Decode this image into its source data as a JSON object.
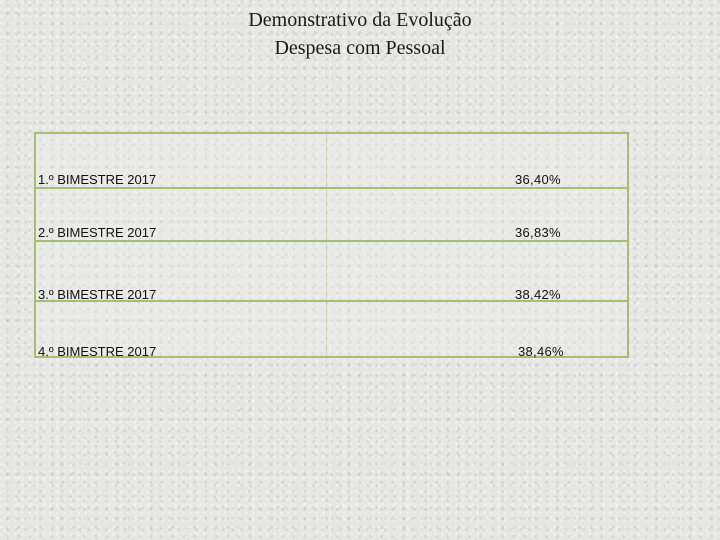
{
  "title": {
    "line1": "Demonstrativo da Evolução",
    "line2": "Despesa com Pessoal"
  },
  "table": {
    "rows": [
      {
        "period": "1.º BIMESTRE 2017",
        "value": "36,40%"
      },
      {
        "period": "2.º BIMESTRE 2017",
        "value": "36,83%"
      },
      {
        "period": "3.º BIMESTRE 2017",
        "value": "38,42%"
      },
      {
        "period": "4.º BIMESTRE 2017",
        "value": "38,46%"
      }
    ]
  },
  "colors": {
    "border": "#a9bd6f",
    "background": "#e6e6e4",
    "text": "#111111"
  }
}
